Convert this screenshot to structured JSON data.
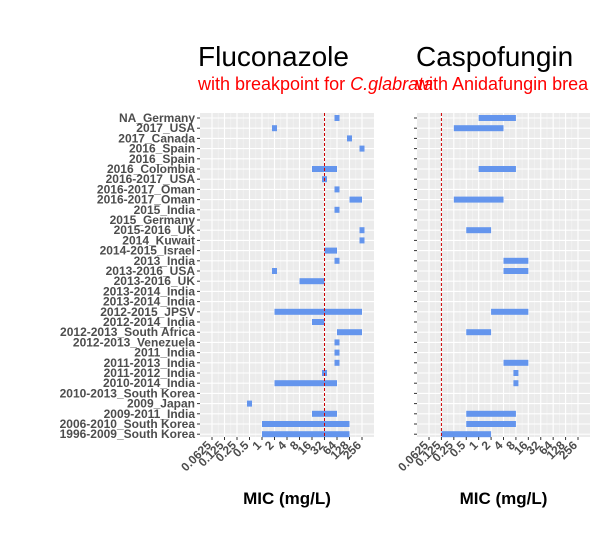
{
  "chart_data": [
    {
      "type": "range-bar",
      "title": "Fluconazole",
      "subtitle_parts": [
        "with breakpoint for ",
        "C.glabrata"
      ],
      "xlabel": "MIC (mg/L)",
      "x_scale": "log2",
      "xlim": [
        0.0625,
        256
      ],
      "x_ticks": [
        "0.0625",
        "0.125",
        "0.25",
        "0.5",
        "1",
        "2",
        "4",
        "8",
        "16",
        "32",
        "64",
        "128",
        "256"
      ],
      "x_tick_labels": [
        "0.0625",
        "0.125",
        "0.25",
        "0.5",
        "1",
        "2",
        "4",
        "8",
        "16",
        "32",
        "64",
        "128",
        "256"
      ],
      "breakpoint": 32,
      "bar_color": "#6495ED",
      "breakpoint_color": "#CC0000",
      "categories": [
        "NA_Germany",
        "2017_USA",
        "2017_Canada",
        "2016_Spain",
        "2016_Spain",
        "2016_Colombia",
        "2016-2017_USA",
        "2016-2017_Oman",
        "2016-2017_Oman",
        "2015_India",
        "2015_Germany",
        "2015-2016_UK",
        "2014_Kuwait",
        "2014-2015_Israel",
        "2013_India",
        "2013-2016_USA",
        "2013-2016_UK",
        "2013-2014_India",
        "2013-2014_India",
        "2012-2015_JPSV",
        "2012-2014_India",
        "2012-2013_South Africa",
        "2012-2013_Venezuela",
        "2011_India",
        "2011-2013_India",
        "2011-2012_India",
        "2010-2014_India",
        "2010-2013_South Korea",
        "2009_Japan",
        "2009-2011_India",
        "2006-2010_South Korea",
        "1996-2009_South Korea"
      ],
      "ranges": [
        [
          64,
          64
        ],
        [
          2,
          2
        ],
        [
          128,
          128
        ],
        [
          256,
          256
        ],
        null,
        [
          16,
          64
        ],
        [
          32,
          32
        ],
        [
          64,
          64
        ],
        [
          128,
          256
        ],
        [
          64,
          64
        ],
        null,
        [
          256,
          256
        ],
        [
          256,
          256
        ],
        [
          32,
          64
        ],
        [
          64,
          64
        ],
        [
          2,
          2
        ],
        [
          8,
          32
        ],
        null,
        null,
        [
          2,
          256
        ],
        [
          16,
          32
        ],
        [
          64,
          256
        ],
        [
          64,
          64
        ],
        [
          64,
          64
        ],
        [
          64,
          64
        ],
        [
          32,
          32
        ],
        [
          2,
          64
        ],
        null,
        [
          0.5,
          0.5
        ],
        [
          16,
          64
        ],
        [
          1,
          128
        ],
        [
          1,
          128
        ]
      ]
    },
    {
      "type": "range-bar",
      "title": "Caspofungin",
      "subtitle_parts": [
        "with Anidafungin brea"
      ],
      "xlabel": "MIC (mg/L)",
      "x_scale": "log2",
      "xlim": [
        0.0625,
        256
      ],
      "x_ticks": [
        "0.0625",
        "0.125",
        "0.25",
        "0.5",
        "1",
        "2",
        "4",
        "8",
        "16",
        "32",
        "64",
        "128",
        "256"
      ],
      "x_tick_labels": [
        "0.0625",
        "0.125",
        "0.25",
        "0.5",
        "1",
        "2",
        "4",
        "8",
        "16",
        "32",
        "64",
        "128",
        "256"
      ],
      "breakpoint": 0.125,
      "bar_color": "#6495ED",
      "breakpoint_color": "#CC0000",
      "categories": [
        "NA_Germany",
        "2017_USA",
        "2017_Canada",
        "2016_Spain",
        "2016_Spain",
        "2016_Colombia",
        "2016-2017_USA",
        "2016-2017_Oman",
        "2016-2017_Oman",
        "2015_India",
        "2015_Germany",
        "2015-2016_UK",
        "2014_Kuwait",
        "2014-2015_Israel",
        "2013_India",
        "2013-2016_USA",
        "2013-2016_UK",
        "2013-2014_India",
        "2013-2014_India",
        "2012-2015_JPSV",
        "2012-2014_India",
        "2012-2013_South Africa",
        "2012-2013_Venezuela",
        "2011_India",
        "2011-2013_India",
        "2011-2012_India",
        "2010-2014_India",
        "2010-2013_South Korea",
        "2009_Japan",
        "2009-2011_India",
        "2006-2010_South Korea",
        "1996-2009_South Korea"
      ],
      "ranges": [
        [
          1,
          8
        ],
        [
          0.25,
          4
        ],
        null,
        null,
        null,
        [
          1,
          8
        ],
        null,
        null,
        [
          0.25,
          4
        ],
        null,
        null,
        [
          0.5,
          2
        ],
        null,
        null,
        [
          4,
          16
        ],
        [
          4,
          16
        ],
        null,
        null,
        null,
        [
          2,
          16
        ],
        null,
        [
          0.5,
          2
        ],
        null,
        null,
        [
          4,
          16
        ],
        [
          8,
          8
        ],
        [
          8,
          8
        ],
        null,
        null,
        [
          0.5,
          8
        ],
        [
          0.5,
          8
        ],
        [
          0.125,
          2
        ]
      ]
    }
  ]
}
